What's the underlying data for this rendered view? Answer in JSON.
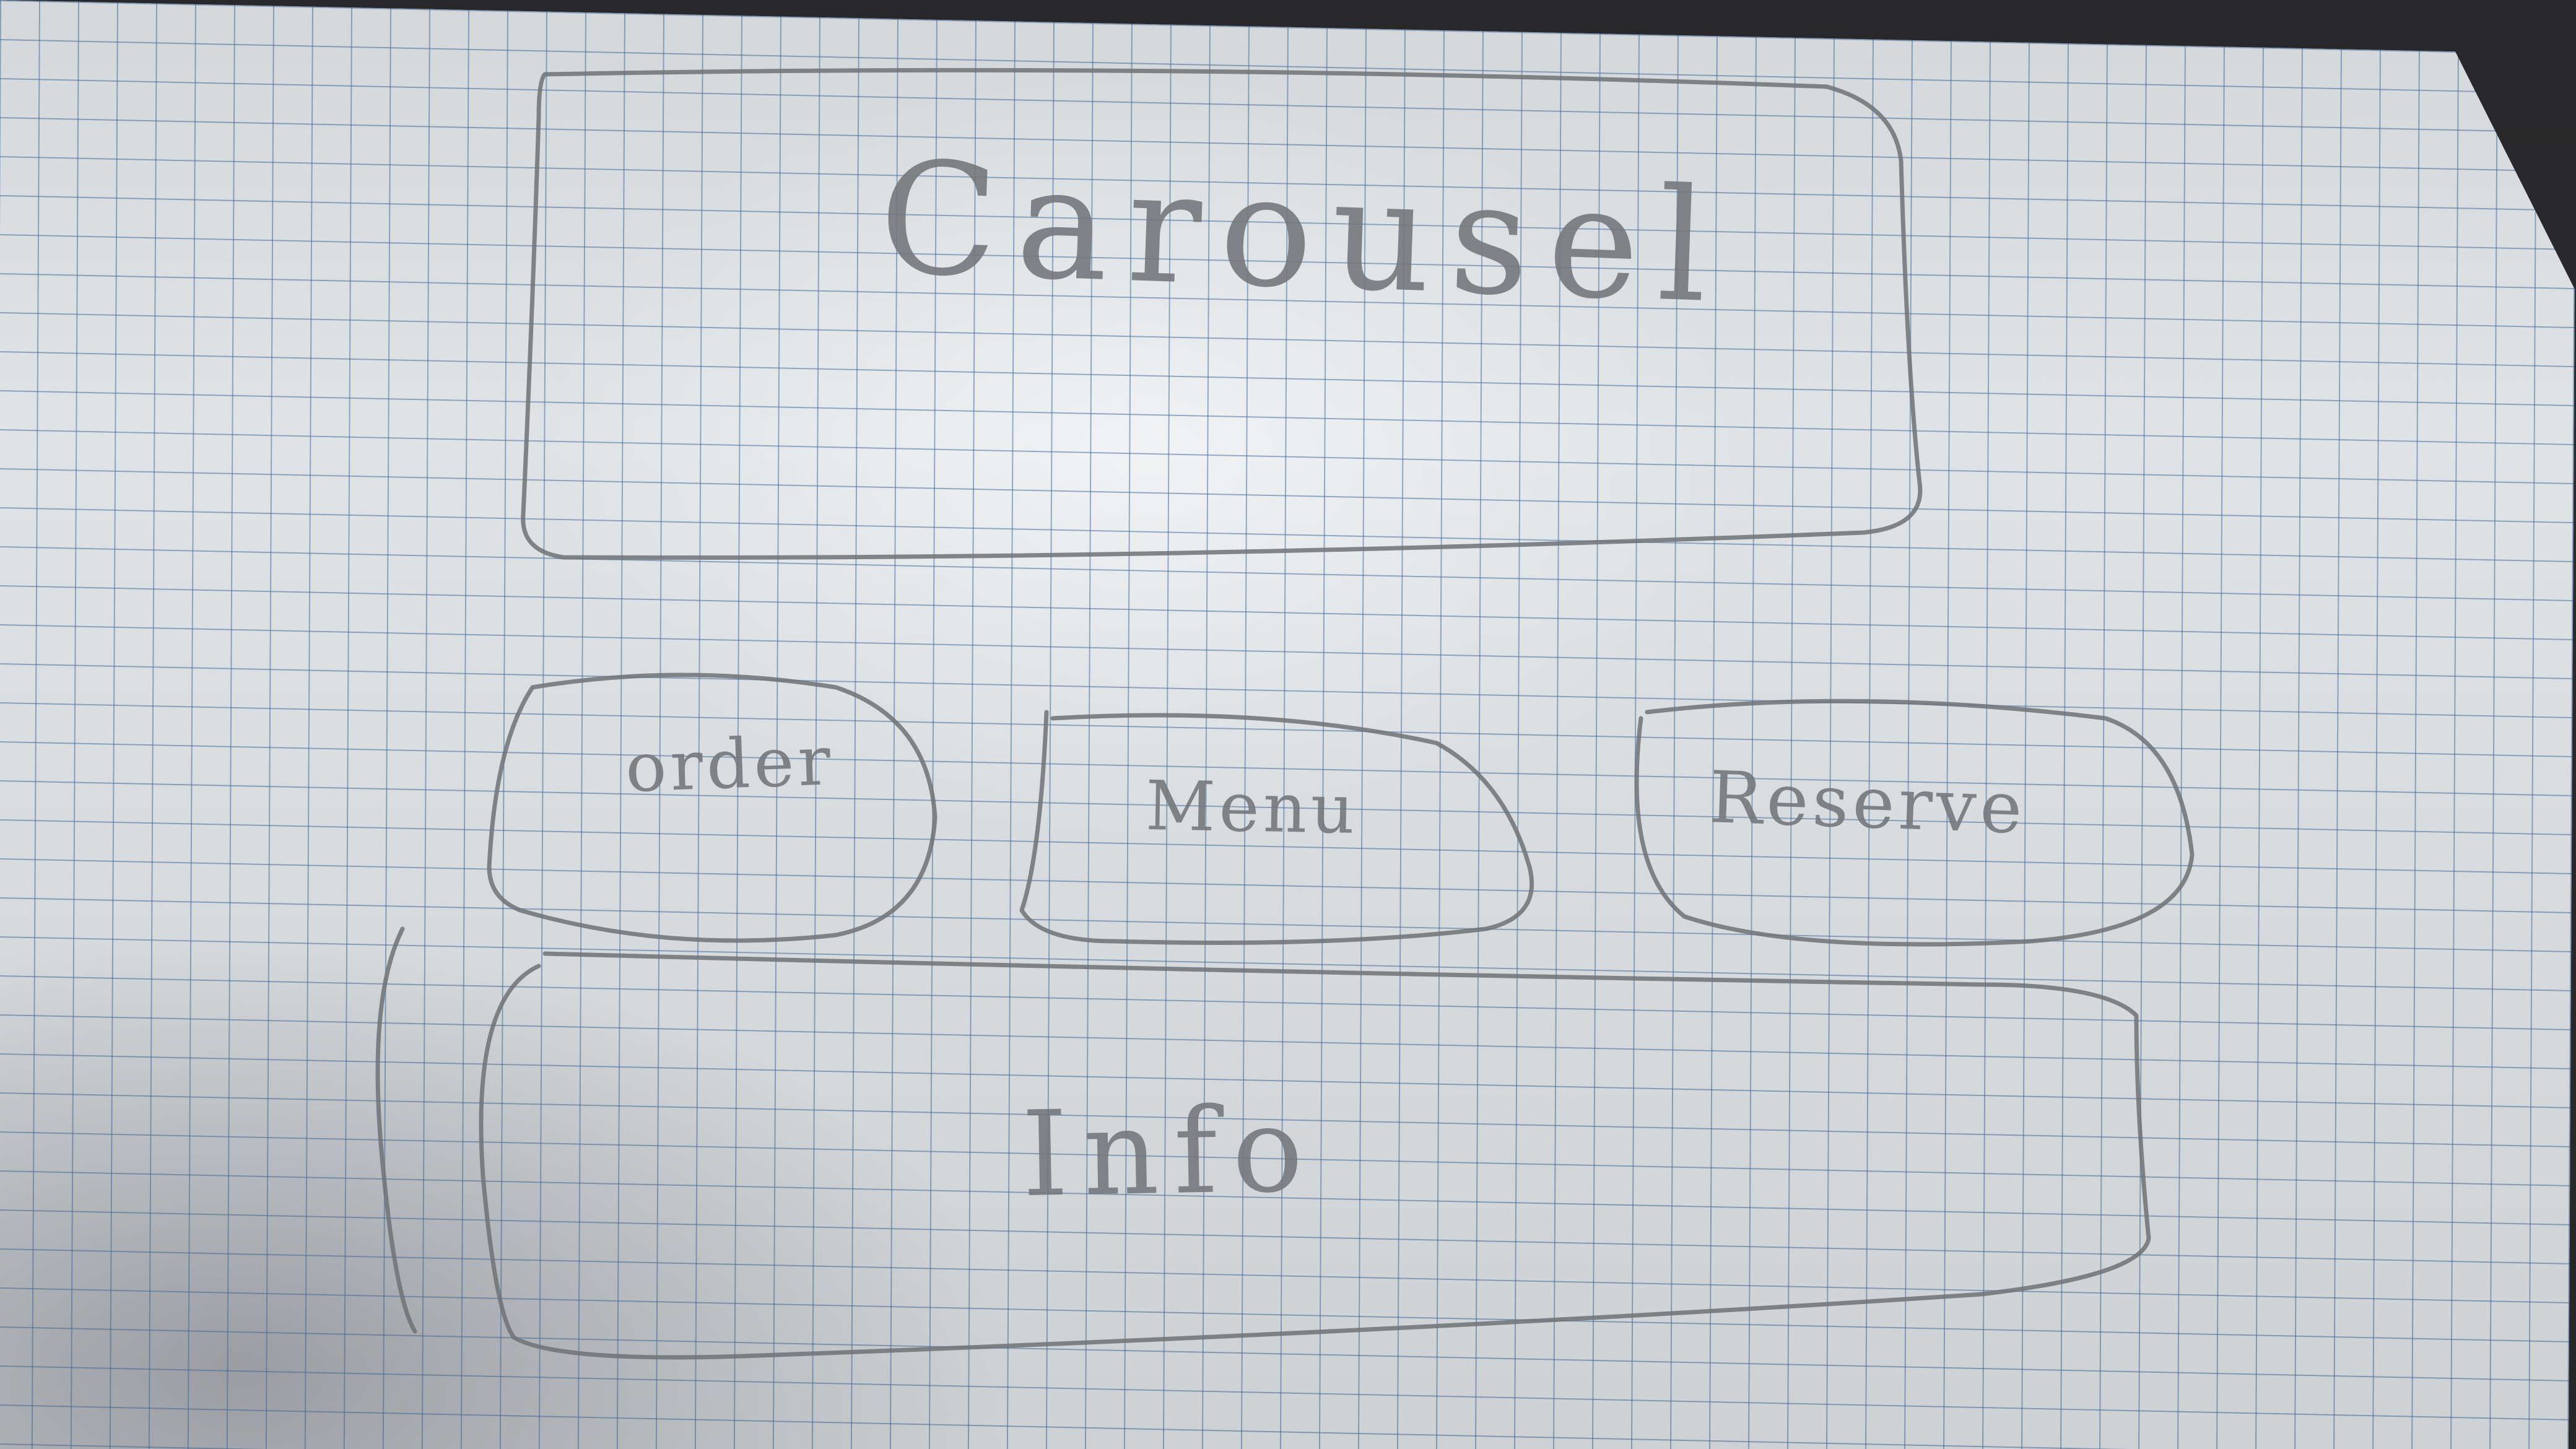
{
  "carousel": {
    "label": "Carousel"
  },
  "buttons": {
    "order": "order",
    "menu": "Menu",
    "reserve": "Reserve"
  },
  "info": {
    "label": "Info"
  },
  "colors": {
    "paper": "#dfe3e6",
    "grid": "#466ea0",
    "pencil": "#6f7276"
  }
}
